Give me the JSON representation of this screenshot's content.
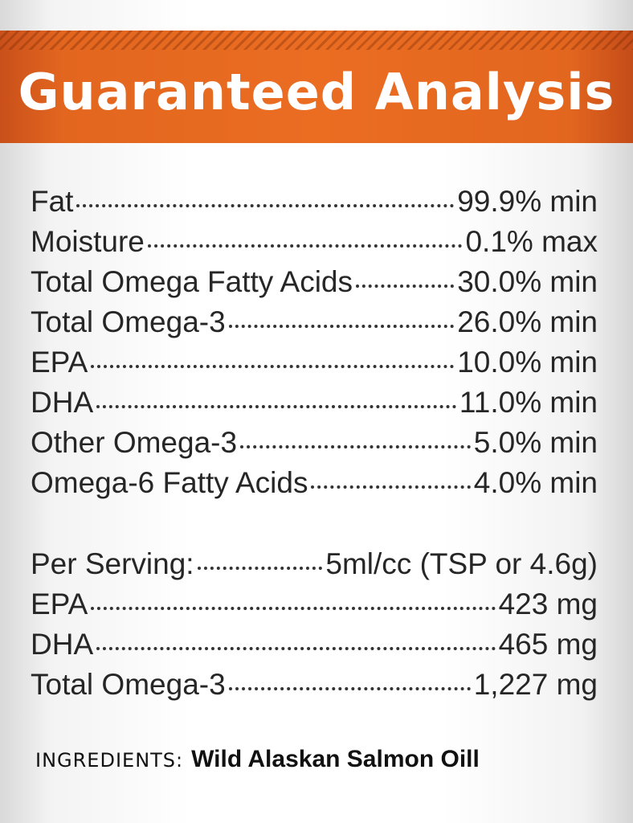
{
  "header": {
    "title": "Guaranteed Analysis"
  },
  "analysis": {
    "rows": [
      [
        "Fat",
        "99.9% min"
      ],
      [
        "Moisture",
        "0.1% max"
      ],
      [
        "Total Omega Fatty Acids",
        "30.0% min"
      ],
      [
        "Total Omega-3",
        "26.0% min"
      ],
      [
        "EPA",
        "10.0% min"
      ],
      [
        "DHA",
        "11.0% min"
      ],
      [
        "Other Omega-3",
        "5.0% min"
      ],
      [
        "Omega-6 Fatty Acids",
        "4.0% min"
      ]
    ]
  },
  "serving": {
    "rows": [
      [
        "Per Serving:",
        "5ml/cc (TSP or 4.6g)"
      ],
      [
        "EPA",
        "423 mg"
      ],
      [
        "DHA",
        "465 mg"
      ],
      [
        "Total Omega-3",
        "1,227 mg"
      ]
    ]
  },
  "ingredients": {
    "label": "INGREDIENTS:",
    "value": "Wild Alaskan Salmon Oill"
  }
}
